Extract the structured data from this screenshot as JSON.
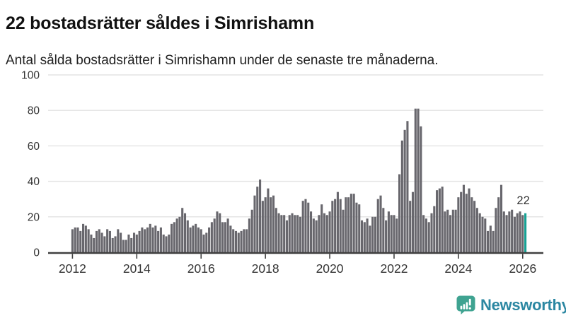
{
  "header": {
    "title": "22 bostadsrätter såldes i Simrishamn",
    "subtitle": "Antal sålda bostadsrätter i Simrishamn under de senaste tre månaderna."
  },
  "chart_data": {
    "type": "bar",
    "title": "22 bostadsrätter såldes i Simrishamn",
    "subtitle": "Antal sålda bostadsrätter i Simrishamn under de senaste tre månaderna.",
    "x_start_month": "2012-01",
    "x_end_month": "2026-02",
    "values": [
      13,
      14,
      14,
      12,
      16,
      15,
      13,
      10,
      8,
      12,
      13,
      11,
      9,
      13,
      12,
      8,
      9,
      13,
      11,
      7,
      7,
      10,
      8,
      11,
      10,
      12,
      14,
      13,
      14,
      16,
      14,
      15,
      12,
      14,
      10,
      9,
      10,
      16,
      17,
      19,
      20,
      25,
      22,
      18,
      14,
      15,
      16,
      14,
      13,
      10,
      11,
      14,
      17,
      19,
      23,
      22,
      17,
      17,
      19,
      15,
      13,
      12,
      11,
      12,
      13,
      13,
      19,
      24,
      32,
      37,
      41,
      29,
      31,
      36,
      31,
      32,
      25,
      22,
      21,
      21,
      18,
      21,
      22,
      21,
      21,
      20,
      29,
      30,
      28,
      23,
      19,
      18,
      21,
      27,
      22,
      21,
      23,
      29,
      30,
      34,
      30,
      24,
      31,
      31,
      33,
      33,
      28,
      27,
      18,
      17,
      19,
      15,
      20,
      20,
      30,
      32,
      25,
      18,
      23,
      21,
      21,
      19,
      44,
      63,
      69,
      74,
      29,
      34,
      81,
      81,
      71,
      21,
      19,
      17,
      22,
      26,
      35,
      36,
      37,
      23,
      24,
      21,
      24,
      24,
      31,
      34,
      38,
      33,
      36,
      31,
      29,
      25,
      22,
      20,
      19,
      12,
      15,
      12,
      25,
      31,
      38,
      23,
      21,
      23,
      24,
      20,
      22,
      23,
      21,
      22
    ],
    "ylim": [
      0,
      100
    ],
    "yticks": [
      0,
      20,
      40,
      60,
      80,
      100
    ],
    "xtick_years": [
      "2012",
      "2014",
      "2016",
      "2018",
      "2020",
      "2022",
      "2024",
      "2026"
    ],
    "grid": true,
    "annotation": {
      "text": "22",
      "applies_to": "last-bar"
    },
    "highlight_last_bar": true,
    "colors": {
      "bar": "#68676D",
      "highlight": "#17A295",
      "grid": "#E3E3E3",
      "axis": "#404040",
      "text": "#333333"
    }
  },
  "footer": {
    "brand": "Newsworthy",
    "brand_color": "#2B87A2",
    "logo_color": "#3FA391"
  }
}
